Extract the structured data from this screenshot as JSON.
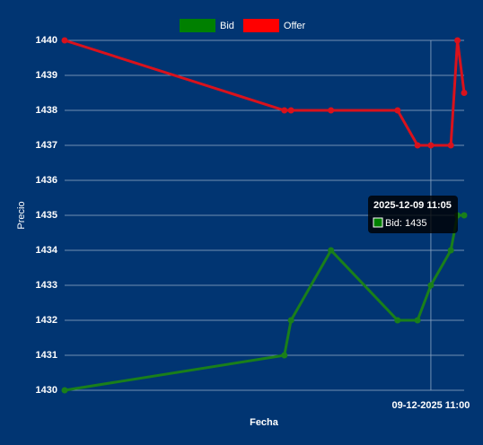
{
  "chart_data": {
    "type": "line",
    "x_label": "Fecha",
    "y_label": "Precio",
    "x": [
      "2025-12-09 10:05",
      "2025-12-09 10:38",
      "2025-12-09 10:39",
      "2025-12-09 10:45",
      "2025-12-09 10:55",
      "2025-12-09 10:58",
      "2025-12-09 11:00",
      "2025-12-09 11:03",
      "2025-12-09 11:04",
      "2025-12-09 11:05"
    ],
    "series": [
      {
        "name": "Bid",
        "color": "#1a7f1a",
        "legend_color": "#008000",
        "values": [
          1430,
          1431,
          1432,
          1434,
          1432,
          1432,
          1433,
          1434,
          1435,
          1435
        ]
      },
      {
        "name": "Offer",
        "color": "#d9121c",
        "legend_color": "#ff0000",
        "values": [
          1440,
          1438,
          1438,
          1438,
          1438,
          1437,
          1437,
          1437,
          1440,
          1438.5
        ]
      }
    ],
    "xlim": [
      "2025-12-09 10:05",
      "2025-12-09 11:05"
    ],
    "xticks": [
      {
        "value": "2025-12-09 11:00",
        "label": "09-12-2025 11:00"
      }
    ],
    "ylim": [
      1430,
      1440
    ],
    "yticks": [
      1430,
      1431,
      1432,
      1433,
      1434,
      1435,
      1436,
      1437,
      1438,
      1439,
      1440
    ],
    "grid": true,
    "legend": "top",
    "tooltip": {
      "title": "2025-12-09 11:05",
      "label": "Bid: 1435"
    }
  }
}
